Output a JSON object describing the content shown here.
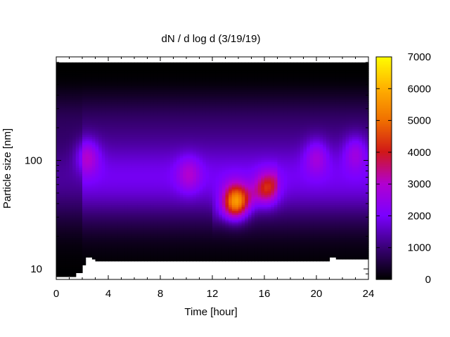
{
  "chart_data": {
    "type": "heatmap",
    "title": "dN / d log d (3/19/19)",
    "xlabel": "Time [hour]",
    "ylabel": "Particle size [nm]",
    "xlim": [
      0,
      24
    ],
    "ylim": [
      8,
      900
    ],
    "yscale": "log",
    "x_ticks": [
      0,
      4,
      8,
      12,
      16,
      20,
      24
    ],
    "y_ticks": [
      10,
      100
    ],
    "colorbar": {
      "min": 0,
      "max": 7000,
      "ticks": [
        0,
        1000,
        2000,
        3000,
        4000,
        5000,
        6000,
        7000
      ],
      "palette": [
        "#000000",
        "#3a0078",
        "#7a00ff",
        "#b200d0",
        "#d01818",
        "#f07000",
        "#ffb000",
        "#ffff00"
      ]
    },
    "size_range_nm": [
      8.5,
      800
    ],
    "data_blobs": [
      {
        "time": 2.4,
        "diameter_nm": 110,
        "peak": 3200
      },
      {
        "time": 10.2,
        "diameter_nm": 75,
        "peak": 2900
      },
      {
        "time": 13.8,
        "diameter_nm": 42,
        "peak": 5600
      },
      {
        "time": 16.2,
        "diameter_nm": 55,
        "peak": 3600
      },
      {
        "time": 20.0,
        "diameter_nm": 110,
        "peak": 2900
      },
      {
        "time": 23.0,
        "diameter_nm": 120,
        "peak": 2900
      }
    ],
    "lower_cutoff_nm": [
      [
        0.0,
        8.6
      ],
      [
        1.6,
        9.4
      ],
      [
        2.0,
        10.7
      ],
      [
        2.3,
        12.6
      ],
      [
        2.7,
        12.3
      ],
      [
        3.1,
        11.9
      ],
      [
        5.3,
        11.8
      ],
      [
        16.7,
        11.6
      ],
      [
        16.9,
        11.9
      ],
      [
        20.7,
        11.6
      ],
      [
        21.0,
        12.7
      ],
      [
        21.4,
        12.3
      ],
      [
        24.0,
        11.9
      ]
    ]
  }
}
